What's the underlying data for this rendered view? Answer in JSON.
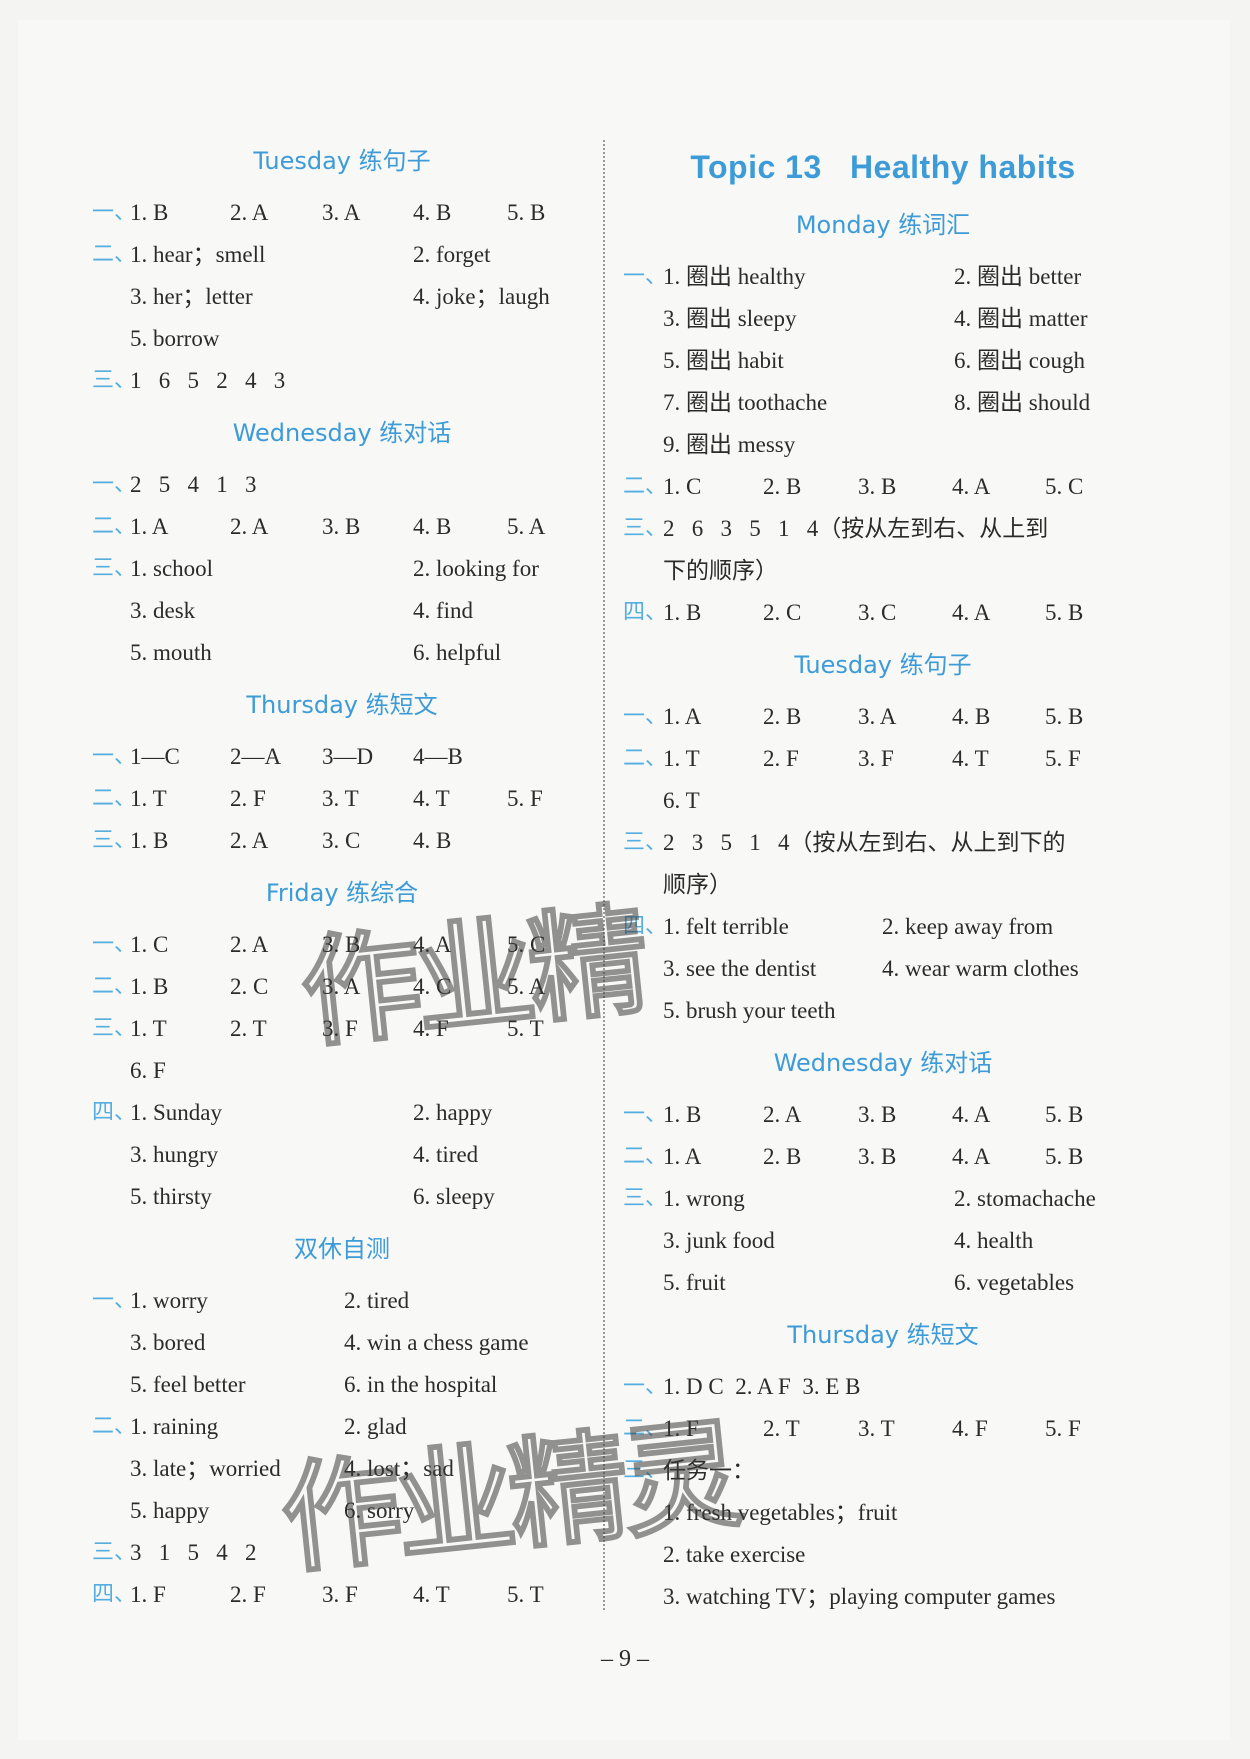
{
  "accent_color": "#3d9bd8",
  "watermark": "作业精灵",
  "page_number": "– 9 –",
  "left": {
    "sections": [
      {
        "title": "Tuesday 练句子",
        "rows": [
          {
            "mark": "一、",
            "cells": [
              "1. B",
              "2. A",
              "3. A",
              "4. B",
              "5. B"
            ]
          },
          {
            "mark": "二、",
            "cells": [
              "1. hear；smell",
              "2. forget"
            ]
          },
          {
            "mark": "",
            "cells": [
              "3. her；letter",
              "4. joke；laugh"
            ]
          },
          {
            "mark": "",
            "cells": [
              "5. borrow"
            ]
          },
          {
            "mark": "三、",
            "cells": [
              "1   6   5   2   4   3"
            ]
          }
        ]
      },
      {
        "title": "Wednesday 练对话",
        "rows": [
          {
            "mark": "一、",
            "cells": [
              "2   5   4   1   3"
            ]
          },
          {
            "mark": "二、",
            "cells": [
              "1. A",
              "2. A",
              "3. B",
              "4. B",
              "5. A"
            ]
          },
          {
            "mark": "三、",
            "cells": [
              "1. school",
              "2. looking for"
            ]
          },
          {
            "mark": "",
            "cells": [
              "3. desk",
              "4. find"
            ]
          },
          {
            "mark": "",
            "cells": [
              "5. mouth",
              "6. helpful"
            ]
          }
        ]
      },
      {
        "title": "Thursday 练短文",
        "rows": [
          {
            "mark": "一、",
            "cells": [
              "1—C",
              "2—A",
              "3—D",
              "4—B"
            ]
          },
          {
            "mark": "二、",
            "cells": [
              "1. T",
              "2. F",
              "3. T",
              "4. T",
              "5. F"
            ]
          },
          {
            "mark": "三、",
            "cells": [
              "1. B",
              "2. A",
              "3. C",
              "4. B"
            ]
          }
        ]
      },
      {
        "title": "Friday 练综合",
        "rows": [
          {
            "mark": "一、",
            "cells": [
              "1. C",
              "2. A",
              "3. B",
              "4. A",
              "5. C"
            ]
          },
          {
            "mark": "二、",
            "cells": [
              "1. B",
              "2. C",
              "3. A",
              "4. C",
              "5. A"
            ]
          },
          {
            "mark": "三、",
            "cells": [
              "1. T",
              "2. T",
              "3. F",
              "4. F",
              "5. T"
            ]
          },
          {
            "mark": "",
            "cells": [
              "6. F"
            ]
          },
          {
            "mark": "四、",
            "cells": [
              "1. Sunday",
              "2. happy"
            ]
          },
          {
            "mark": "",
            "cells": [
              "3. hungry",
              "4. tired"
            ]
          },
          {
            "mark": "",
            "cells": [
              "5. thirsty",
              "6. sleepy"
            ]
          }
        ]
      },
      {
        "title": "双休自测",
        "rows": [
          {
            "mark": "一、",
            "cells": [
              "1. worry",
              "2. tired"
            ]
          },
          {
            "mark": "",
            "cells": [
              "3. bored",
              "4. win a chess game"
            ]
          },
          {
            "mark": "",
            "cells": [
              "5. feel better",
              "6. in the hospital"
            ]
          },
          {
            "mark": "二、",
            "cells": [
              "1. raining",
              "2. glad"
            ]
          },
          {
            "mark": "",
            "cells": [
              "3. late；worried",
              "4. lost；sad"
            ]
          },
          {
            "mark": "",
            "cells": [
              "5. happy",
              "6. sorry"
            ]
          },
          {
            "mark": "三、",
            "cells": [
              "3   1   5   4   2"
            ]
          },
          {
            "mark": "四、",
            "cells": [
              "1. F",
              "2. F",
              "3. F",
              "4. T",
              "5. T"
            ]
          }
        ]
      }
    ]
  },
  "right": {
    "topic_title": "Topic 13   Healthy habits",
    "sections": [
      {
        "title": "Monday 练词汇",
        "rows": [
          {
            "mark": "一、",
            "cells": [
              "1. 圈出 healthy",
              "2. 圈出 better"
            ]
          },
          {
            "mark": "",
            "cells": [
              "3. 圈出 sleepy",
              "4. 圈出 matter"
            ]
          },
          {
            "mark": "",
            "cells": [
              "5. 圈出 habit",
              "6. 圈出 cough"
            ]
          },
          {
            "mark": "",
            "cells": [
              "7. 圈出 toothache",
              "8. 圈出 should"
            ]
          },
          {
            "mark": "",
            "cells": [
              "9. 圈出 messy"
            ]
          },
          {
            "mark": "二、",
            "cells": [
              "1. C",
              "2. B",
              "3. B",
              "4. A",
              "5. C"
            ]
          },
          {
            "mark": "三、",
            "cells": [
              "2   6   3   5   1   4（按从左到右、从上到"
            ]
          },
          {
            "mark": "",
            "cells": [
              "下的顺序）"
            ]
          },
          {
            "mark": "四、",
            "cells": [
              "1. B",
              "2. C",
              "3. C",
              "4. A",
              "5. B"
            ]
          }
        ]
      },
      {
        "title": "Tuesday 练句子",
        "rows": [
          {
            "mark": "一、",
            "cells": [
              "1. A",
              "2. B",
              "3. A",
              "4. B",
              "5. B"
            ]
          },
          {
            "mark": "二、",
            "cells": [
              "1. T",
              "2. F",
              "3. F",
              "4. T",
              "5. F"
            ]
          },
          {
            "mark": "",
            "cells": [
              "6. T"
            ]
          },
          {
            "mark": "三、",
            "cells": [
              "2   3   5   1   4（按从左到右、从上到下的"
            ]
          },
          {
            "mark": "",
            "cells": [
              "顺序）"
            ]
          },
          {
            "mark": "四、",
            "cells": [
              "1. felt terrible",
              "2. keep away from"
            ]
          },
          {
            "mark": "",
            "cells": [
              "3. see the dentist",
              "4. wear warm clothes"
            ]
          },
          {
            "mark": "",
            "cells": [
              "5. brush your teeth"
            ]
          }
        ]
      },
      {
        "title": "Wednesday 练对话",
        "rows": [
          {
            "mark": "一、",
            "cells": [
              "1. B",
              "2. A",
              "3. B",
              "4. A",
              "5. B"
            ]
          },
          {
            "mark": "二、",
            "cells": [
              "1. A",
              "2. B",
              "3. B",
              "4. A",
              "5. B"
            ]
          },
          {
            "mark": "三、",
            "cells": [
              "1. wrong",
              "2. stomachache"
            ]
          },
          {
            "mark": "",
            "cells": [
              "3. junk food",
              "4. health"
            ]
          },
          {
            "mark": "",
            "cells": [
              "5. fruit",
              "6. vegetables"
            ]
          }
        ]
      },
      {
        "title": "Thursday 练短文",
        "rows": [
          {
            "mark": "一、",
            "cells": [
              "1. D C  2. A F  3. E B"
            ]
          },
          {
            "mark": "二、",
            "cells": [
              "1. F",
              "2. T",
              "3. T",
              "4. F",
              "5. F"
            ]
          },
          {
            "mark": "三、",
            "cells": [
              "任务一："
            ]
          },
          {
            "mark": "",
            "cells": [
              "1. fresh vegetables；fruit"
            ]
          },
          {
            "mark": "",
            "cells": [
              "2. take exercise"
            ]
          },
          {
            "mark": "",
            "cells": [
              "3. watching TV；playing computer games"
            ]
          }
        ]
      }
    ]
  }
}
